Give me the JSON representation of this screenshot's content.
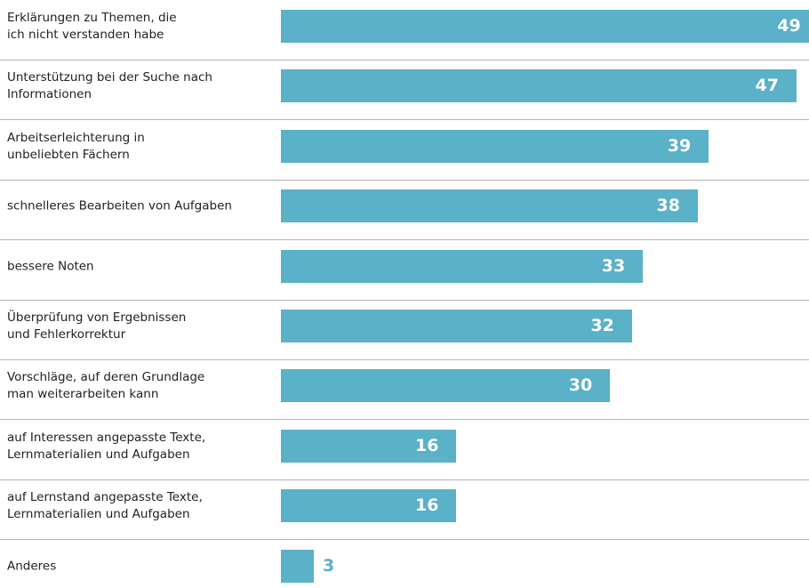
{
  "chart_data": {
    "type": "bar",
    "orientation": "horizontal",
    "categories": [
      "Erklärungen zu Themen, die\nich nicht verstanden habe",
      "Unterstützung bei der Suche nach\nInformationen",
      "Arbeitserleichterung in\nunbeliebten Fächern",
      "schnelleres Bearbeiten von Aufgaben",
      "bessere Noten",
      "Überprüfung von Ergebnissen\nund Fehlerkorrektur",
      "Vorschläge, auf deren Grundlage\nman weiterarbeiten kann",
      "auf Interessen angepasste Texte,\nLernmaterialien und Aufgaben",
      "auf Lernstand angepasste Texte,\nLernmaterialien und Aufgaben",
      "Anderes"
    ],
    "values": [
      49,
      47,
      39,
      38,
      33,
      32,
      30,
      16,
      16,
      3
    ],
    "color": "#5bb1c7",
    "xlim": [
      0,
      47
    ]
  }
}
